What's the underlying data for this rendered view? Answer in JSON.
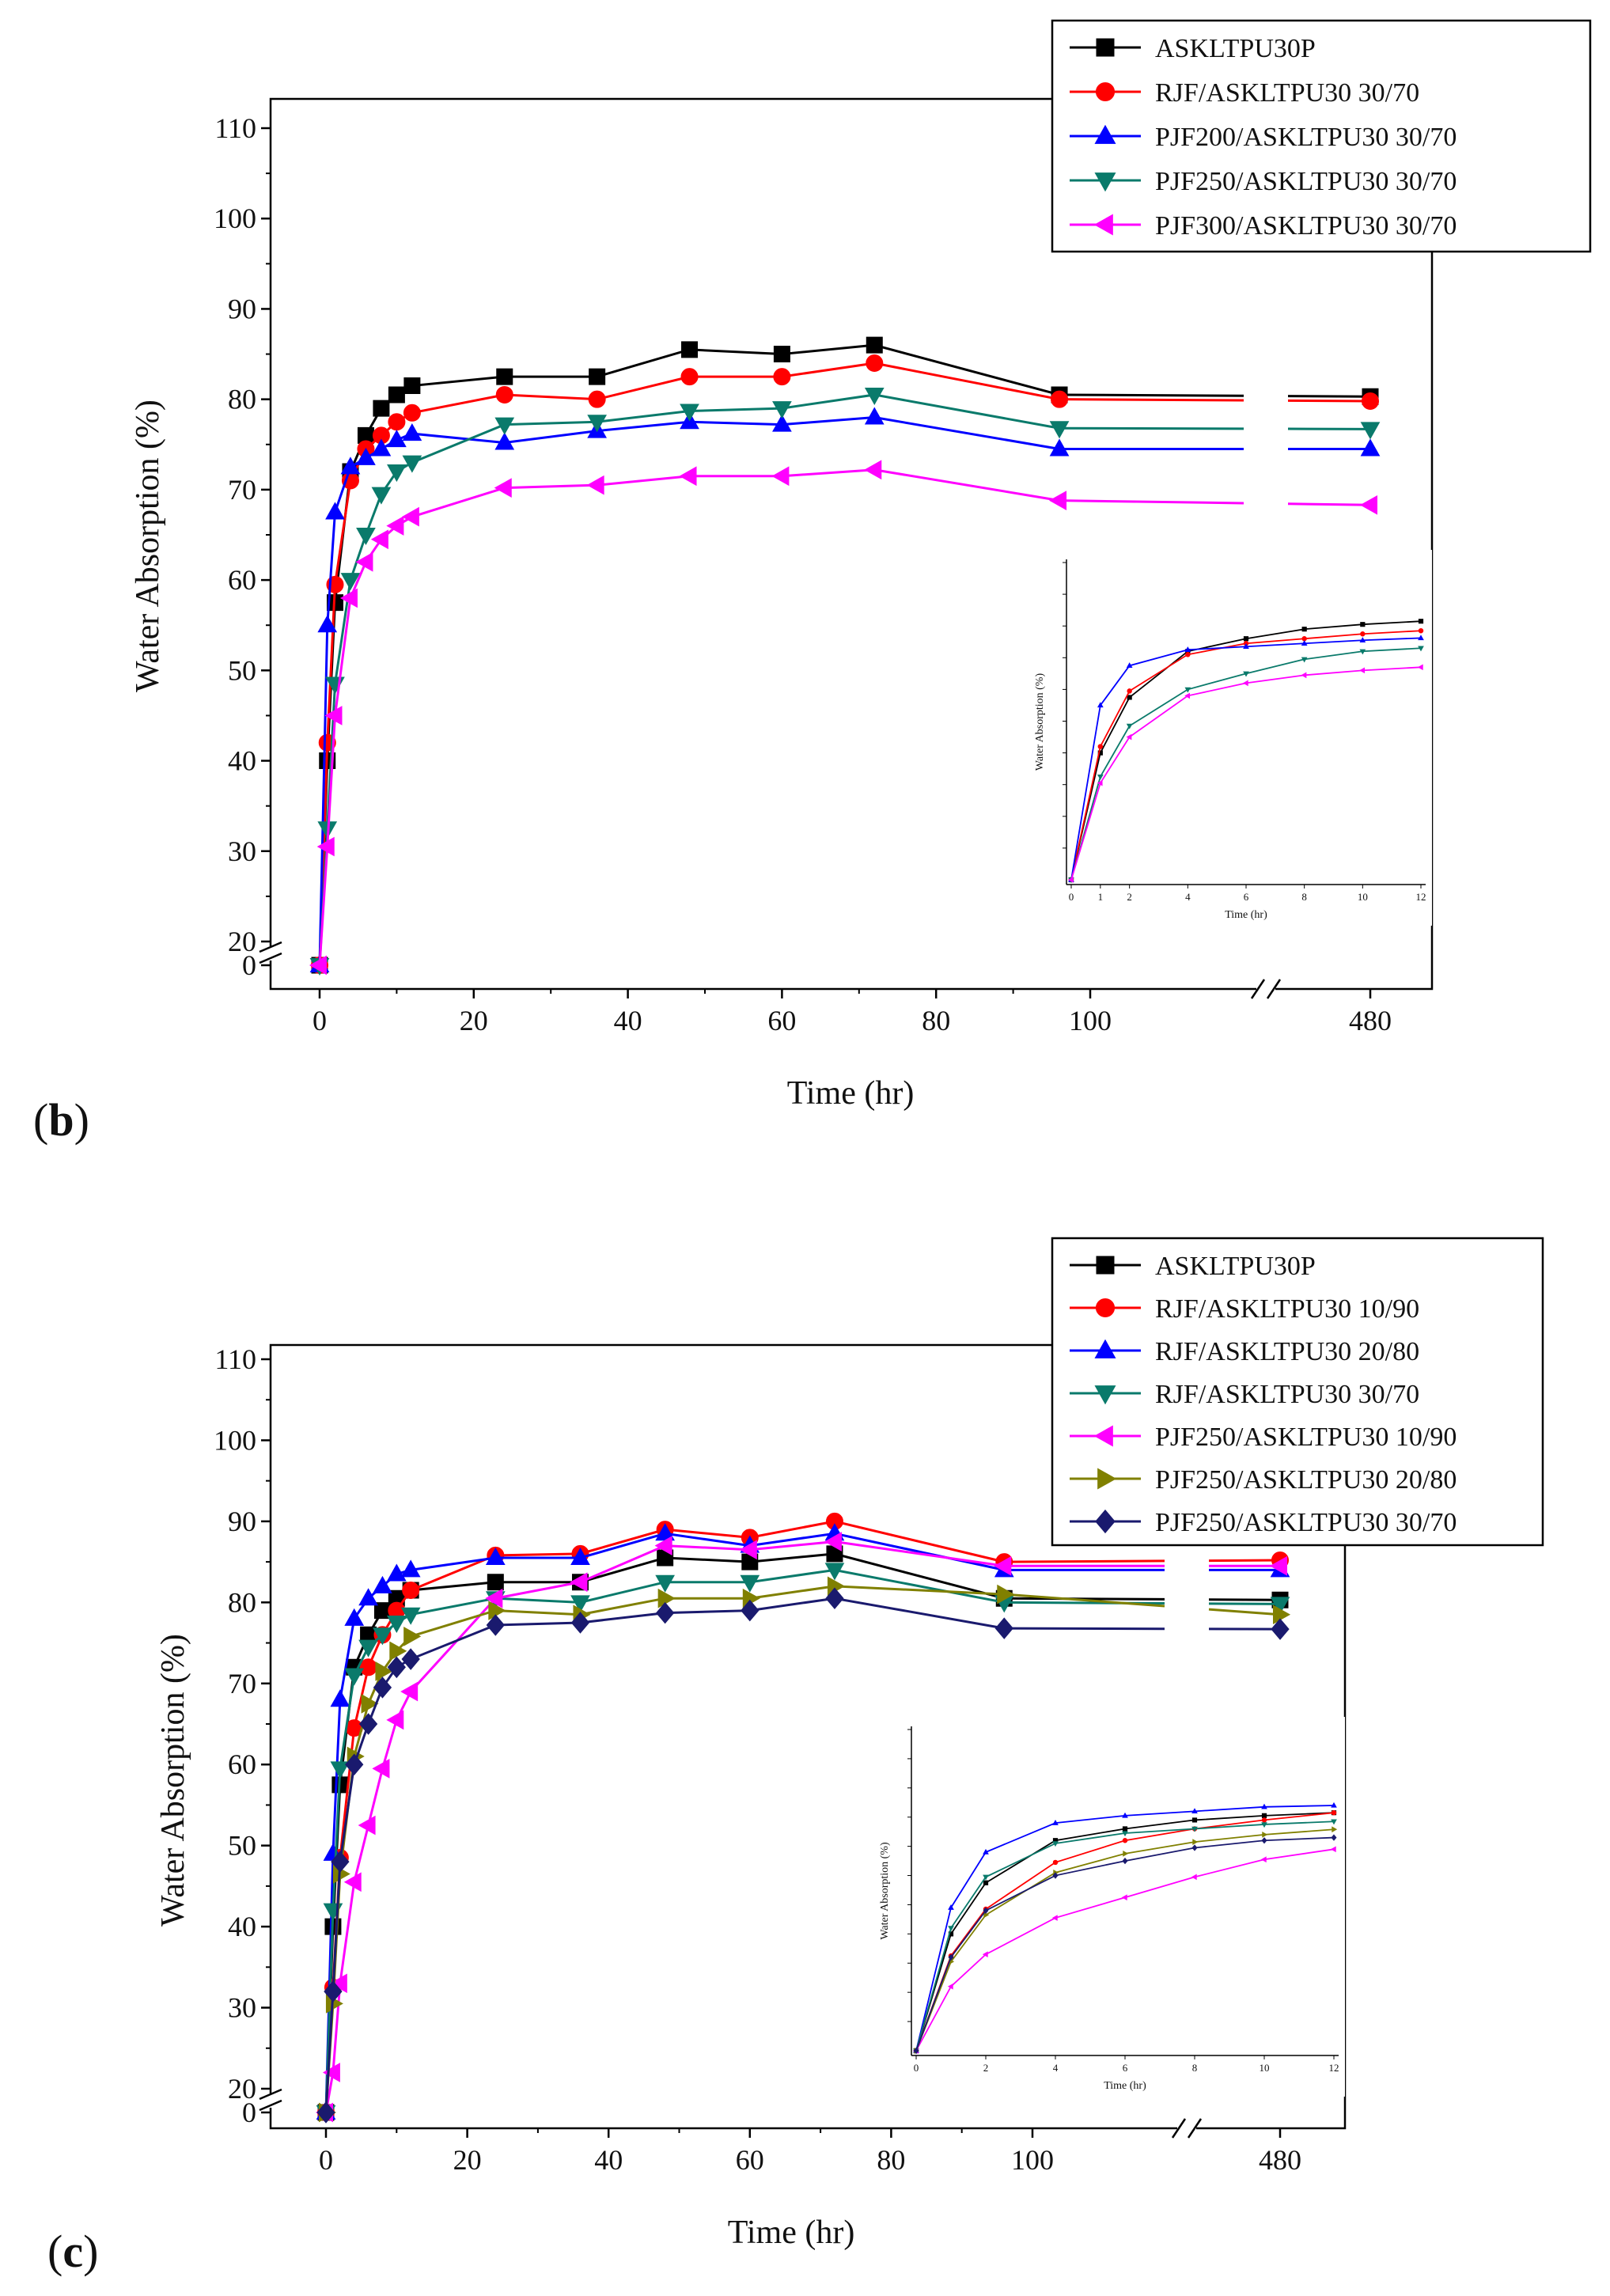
{
  "chart_data": [
    {
      "panel_label": "b",
      "type": "line",
      "title": "",
      "xlabel": "Time (hr)",
      "ylabel": "Water Absorption (%)",
      "ylim": [
        0,
        110
      ],
      "y_break": [
        0,
        20
      ],
      "x_break": [
        100,
        480
      ],
      "xticks": [
        "0",
        "20",
        "40",
        "60",
        "80",
        "100",
        "480"
      ],
      "yticks": [
        "0",
        "20",
        "30",
        "40",
        "50",
        "60",
        "70",
        "80",
        "90",
        "100",
        "110"
      ],
      "grid": false,
      "legend_position": "top-right",
      "x": [
        0,
        1,
        2,
        4,
        6,
        8,
        10,
        12,
        24,
        36,
        48,
        60,
        72,
        96,
        480
      ],
      "series": [
        {
          "name": "ASKLTPU30P",
          "color": "#000000",
          "marker": "square",
          "values": [
            0,
            40,
            57.5,
            72,
            76,
            79,
            80.5,
            81.5,
            82.5,
            82.5,
            85.5,
            85,
            86,
            80.5,
            80.3
          ]
        },
        {
          "name": "RJF/ASKLTPU30 30/70",
          "color": "#ff0000",
          "marker": "circle",
          "values": [
            0,
            42,
            59.5,
            71,
            74.5,
            76,
            77.5,
            78.5,
            80.5,
            80,
            82.5,
            82.5,
            84,
            80,
            79.8
          ]
        },
        {
          "name": "PJF200/ASKLTPU30 30/70",
          "color": "#0000ff",
          "marker": "triangle-up",
          "values": [
            0,
            55,
            67.5,
            72.5,
            73.5,
            74.5,
            75.5,
            76.2,
            75.2,
            76.5,
            77.5,
            77.2,
            78,
            74.5,
            74.5
          ]
        },
        {
          "name": "PJF250/ASKLTPU30 30/70",
          "color": "#0a7a6b",
          "marker": "triangle-down",
          "values": [
            0,
            32.5,
            48.5,
            60,
            65,
            69.5,
            72,
            73,
            77.2,
            77.5,
            78.7,
            79,
            80.5,
            76.8,
            76.7
          ]
        },
        {
          "name": "PJF300/ASKLTPU30 30/70",
          "color": "#ff00ff",
          "marker": "triangle-left",
          "values": [
            0,
            30.5,
            45,
            58,
            62,
            64.5,
            66,
            67,
            70.2,
            70.5,
            71.5,
            71.5,
            72.2,
            68.8,
            68.3
          ]
        }
      ],
      "inset": {
        "xlabel": "Time (hr)",
        "ylabel": "Water Absorption (%)",
        "xticks": [
          "0",
          "1",
          "2",
          "4",
          "6",
          "8",
          "10",
          "12"
        ]
      }
    },
    {
      "panel_label": "c",
      "type": "line",
      "title": "",
      "xlabel": "Time (hr)",
      "ylabel": "Water Absorption (%)",
      "ylim": [
        0,
        110
      ],
      "y_break": [
        0,
        20
      ],
      "x_break": [
        100,
        480
      ],
      "xticks": [
        "0",
        "20",
        "40",
        "60",
        "80",
        "100",
        "480"
      ],
      "yticks": [
        "0",
        "20",
        "30",
        "40",
        "50",
        "60",
        "70",
        "80",
        "90",
        "100",
        "110"
      ],
      "grid": false,
      "legend_position": "top-right",
      "x": [
        0,
        1,
        2,
        4,
        6,
        8,
        10,
        12,
        24,
        36,
        48,
        60,
        72,
        96,
        480
      ],
      "series": [
        {
          "name": "ASKLTPU30P",
          "color": "#000000",
          "marker": "square",
          "values": [
            0,
            40,
            57.5,
            72,
            76,
            79,
            80.5,
            81.5,
            82.5,
            82.5,
            85.5,
            85,
            86,
            80.5,
            80.3
          ]
        },
        {
          "name": "RJF/ASKLTPU30 10/90",
          "color": "#ff0000",
          "marker": "circle",
          "values": [
            0,
            32.5,
            48.5,
            64.5,
            72,
            76,
            79,
            81.5,
            85.8,
            86,
            89,
            88,
            90,
            85,
            85.2
          ]
        },
        {
          "name": "RJF/ASKLTPU30 20/80",
          "color": "#0000ff",
          "marker": "triangle-up",
          "values": [
            0,
            49,
            68,
            78,
            80.5,
            82,
            83.5,
            84,
            85.5,
            85.5,
            88.5,
            87,
            88.5,
            84,
            84
          ]
        },
        {
          "name": "RJF/ASKLTPU30 30/70",
          "color": "#0a7a6b",
          "marker": "triangle-down",
          "values": [
            0,
            42,
            59.5,
            71,
            74.5,
            76,
            77.5,
            78.5,
            80.5,
            80,
            82.5,
            82.5,
            84,
            80,
            79.8
          ]
        },
        {
          "name": "PJF250/ASKLTPU30 10/90",
          "color": "#ff00ff",
          "marker": "triangle-left",
          "values": [
            0,
            22,
            33,
            45.5,
            52.5,
            59.5,
            65.5,
            69,
            80.5,
            82.5,
            87,
            86.5,
            87.5,
            84.5,
            84.5
          ]
        },
        {
          "name": "PJF250/ASKLTPU30 20/80",
          "color": "#808000",
          "marker": "triangle-right",
          "values": [
            0,
            30.5,
            46.5,
            61,
            67.5,
            71.5,
            74,
            75.8,
            79,
            78.5,
            80.5,
            80.5,
            82,
            81,
            78.5
          ]
        },
        {
          "name": "PJF250/ASKLTPU30 30/70",
          "color": "#1a1a6e",
          "marker": "diamond",
          "values": [
            0,
            32,
            48,
            60,
            65,
            69.5,
            72,
            73,
            77.2,
            77.5,
            78.7,
            79,
            80.5,
            76.8,
            76.7
          ]
        }
      ],
      "inset": {
        "xlabel": "Time (hr)",
        "ylabel": "Water Absorption (%)",
        "xticks": [
          "0",
          "2",
          "4",
          "6",
          "8",
          "10",
          "12"
        ]
      }
    }
  ]
}
